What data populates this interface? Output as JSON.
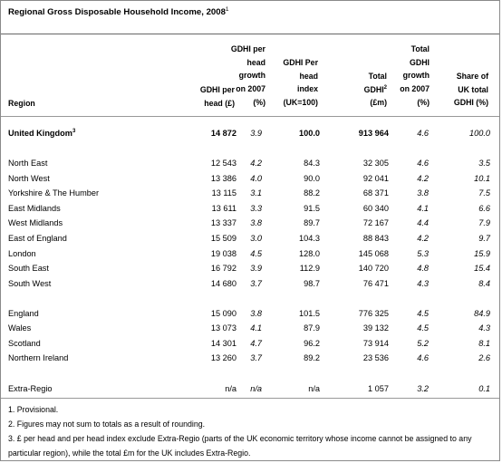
{
  "title": "Regional Gross Disposable Household Income, 2008",
  "title_note": "1",
  "headers": {
    "region": "Region",
    "gdhi_per_head": [
      "GDHI per",
      "head (£)"
    ],
    "gdhi_growth": [
      "GDHI per",
      "head",
      "growth",
      "on 2007",
      "(%)"
    ],
    "gdhi_index": [
      "GDHI Per",
      "head",
      "index",
      "(UK=100)"
    ],
    "total_gdhi": [
      "Total",
      "GDHI",
      "(£m)"
    ],
    "total_gdhi_note": "2",
    "total_growth": [
      "Total",
      "GDHI",
      "growth",
      "on 2007",
      "(%)"
    ],
    "share": [
      "Share of",
      "UK total",
      "GDHI (%)"
    ]
  },
  "rows": [
    {
      "region": "United Kingdom",
      "note": "3",
      "per_head": "14 872",
      "growth": "3.9",
      "index": "100.0",
      "total": "913 964",
      "total_growth": "4.6",
      "share": "100.0"
    },
    {
      "region": "North East",
      "per_head": "12 543",
      "growth": "4.2",
      "index": "84.3",
      "total": "32 305",
      "total_growth": "4.6",
      "share": "3.5"
    },
    {
      "region": "North West",
      "per_head": "13 386",
      "growth": "4.0",
      "index": "90.0",
      "total": "92 041",
      "total_growth": "4.2",
      "share": "10.1"
    },
    {
      "region": "Yorkshire & The Humber",
      "per_head": "13 115",
      "growth": "3.1",
      "index": "88.2",
      "total": "68 371",
      "total_growth": "3.8",
      "share": "7.5"
    },
    {
      "region": "East Midlands",
      "per_head": "13 611",
      "growth": "3.3",
      "index": "91.5",
      "total": "60 340",
      "total_growth": "4.1",
      "share": "6.6"
    },
    {
      "region": "West Midlands",
      "per_head": "13 337",
      "growth": "3.8",
      "index": "89.7",
      "total": "72 167",
      "total_growth": "4.4",
      "share": "7.9"
    },
    {
      "region": "East of England",
      "per_head": "15 509",
      "growth": "3.0",
      "index": "104.3",
      "total": "88 843",
      "total_growth": "4.2",
      "share": "9.7"
    },
    {
      "region": "London",
      "per_head": "19 038",
      "growth": "4.5",
      "index": "128.0",
      "total": "145 068",
      "total_growth": "5.3",
      "share": "15.9"
    },
    {
      "region": "South East",
      "per_head": "16 792",
      "growth": "3.9",
      "index": "112.9",
      "total": "140 720",
      "total_growth": "4.8",
      "share": "15.4"
    },
    {
      "region": "South West",
      "per_head": "14 680",
      "growth": "3.7",
      "index": "98.7",
      "total": "76 471",
      "total_growth": "4.3",
      "share": "8.4"
    },
    {
      "region": "England",
      "per_head": "15 090",
      "growth": "3.8",
      "index": "101.5",
      "total": "776 325",
      "total_growth": "4.5",
      "share": "84.9"
    },
    {
      "region": "Wales",
      "per_head": "13 073",
      "growth": "4.1",
      "index": "87.9",
      "total": "39 132",
      "total_growth": "4.5",
      "share": "4.3"
    },
    {
      "region": "Scotland",
      "per_head": "14 301",
      "growth": "4.7",
      "index": "96.2",
      "total": "73 914",
      "total_growth": "5.2",
      "share": "8.1"
    },
    {
      "region": "Northern Ireland",
      "per_head": "13 260",
      "growth": "3.7",
      "index": "89.2",
      "total": "23 536",
      "total_growth": "4.6",
      "share": "2.6"
    },
    {
      "region": "Extra-Regio",
      "per_head": "n/a",
      "growth": "n/a",
      "index": "n/a",
      "total": "1 057",
      "total_growth": "3.2",
      "share": "0.1"
    }
  ],
  "notes": [
    "1. Provisional.",
    "2. Figures may not sum to totals as a result of rounding.",
    "3. £ per head and per head index exclude Extra-Regio (parts of the UK economic territory whose income cannot be assigned to any particular region), while the total £m for the UK includes Extra-Regio."
  ]
}
